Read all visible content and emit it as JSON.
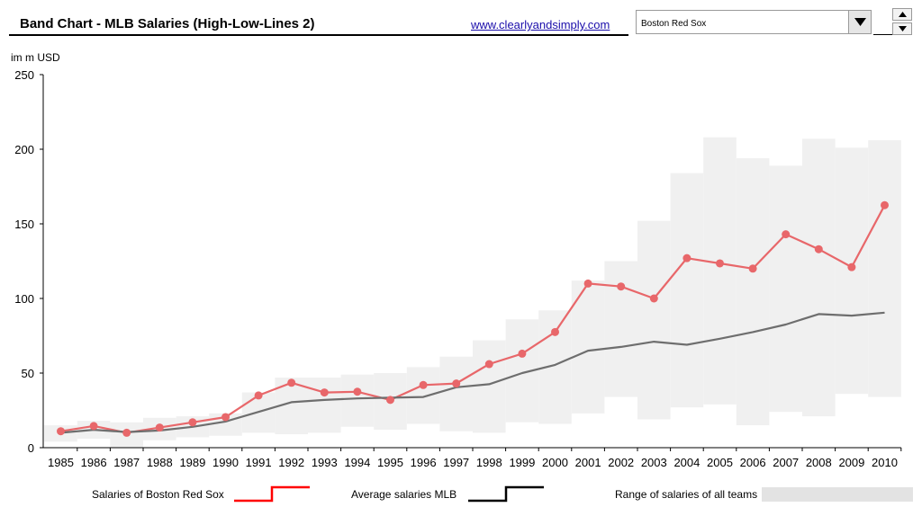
{
  "header": {
    "title": "Band Chart - MLB Salaries (High-Low-Lines 2)",
    "link": "www.clearlyandsimply.com"
  },
  "team_selector": {
    "selected": "Boston Red Sox"
  },
  "colors": {
    "team": "#e8676a",
    "average": "#6e6e6e",
    "band": "#f0f0f0"
  },
  "chart_data": {
    "type": "line",
    "title": "Band Chart - MLB Salaries (High-Low-Lines 2)",
    "ylabel": "im m USD",
    "xlabel": "",
    "ylim": [
      0,
      250
    ],
    "yticks": [
      0,
      50,
      100,
      150,
      200,
      250
    ],
    "grid": false,
    "legend_position": "bottom",
    "categories": [
      "1985",
      "1986",
      "1987",
      "1988",
      "1989",
      "1990",
      "1991",
      "1992",
      "1993",
      "1994",
      "1995",
      "1996",
      "1997",
      "1998",
      "1999",
      "2000",
      "2001",
      "2002",
      "2003",
      "2004",
      "2005",
      "2006",
      "2007",
      "2008",
      "2009",
      "2010"
    ],
    "band": {
      "name": "Range of salaries of all teams",
      "low": [
        4,
        6,
        0,
        5,
        7,
        8,
        10,
        9,
        10,
        14,
        12,
        16,
        11,
        10,
        17,
        16,
        23,
        34,
        19,
        27,
        29,
        15,
        24,
        21,
        36,
        34
      ],
      "high": [
        15,
        18,
        17,
        20,
        21,
        23,
        37,
        47,
        47,
        49,
        50,
        54,
        61,
        72,
        86,
        92,
        112,
        125,
        152,
        184,
        208,
        194,
        189,
        207,
        201,
        206
      ]
    },
    "series": [
      {
        "name": "Salaries of Boston Red Sox",
        "values": [
          11,
          14.5,
          10,
          13.5,
          17,
          20.5,
          35,
          43.5,
          37,
          37.5,
          32,
          42,
          43,
          56,
          63,
          77.5,
          110,
          108,
          100,
          127,
          123.5,
          120,
          143,
          133,
          121,
          162.5
        ]
      },
      {
        "name": "Average salaries MLB",
        "values": [
          10,
          12,
          10.5,
          11.5,
          14,
          17.5,
          24,
          30.5,
          32,
          33,
          33.5,
          34,
          40.5,
          42.5,
          50,
          55.5,
          65,
          67.5,
          71,
          69,
          73,
          77.5,
          82.5,
          89.5,
          88.5,
          90.5
        ]
      }
    ]
  }
}
